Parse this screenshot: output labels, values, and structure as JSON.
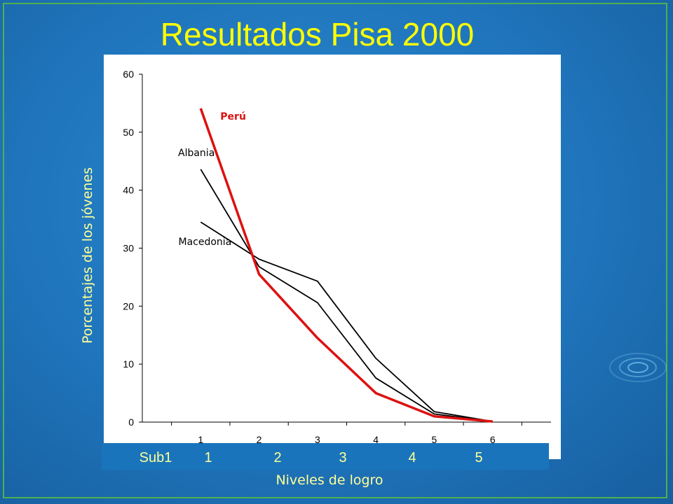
{
  "title": "Resultados Pisa 2000",
  "level_labels": [
    "Sub1",
    "1",
    "2",
    "3",
    "4",
    "5"
  ],
  "colors": {
    "background": "#1f74bb",
    "title": "#ffff00",
    "label": "#ffff99",
    "peru": "#dd1111",
    "others": "#000000"
  },
  "chart_data": {
    "type": "line",
    "title": "",
    "xlabel": "Niveles de logro",
    "ylabel": "Porcentajes de los jóvenes",
    "x": [
      1,
      2,
      3,
      4,
      5,
      6
    ],
    "xlim": [
      0,
      7
    ],
    "ylim": [
      0,
      60
    ],
    "yticks": [
      0,
      10,
      20,
      30,
      40,
      50,
      60
    ],
    "grid": false,
    "legend": "inline labels next to each line",
    "series": [
      {
        "name": "Perú",
        "values": [
          54.1,
          25.5,
          14.5,
          5.0,
          1.0,
          0.1
        ],
        "color": "#dd1111"
      },
      {
        "name": "Albania",
        "values": [
          43.6,
          26.8,
          20.6,
          7.6,
          1.4,
          0.1
        ],
        "color": "#000000"
      },
      {
        "name": "Macedonia",
        "values": [
          34.5,
          28.1,
          24.3,
          11.0,
          1.8,
          0.1
        ],
        "color": "#000000"
      }
    ]
  }
}
